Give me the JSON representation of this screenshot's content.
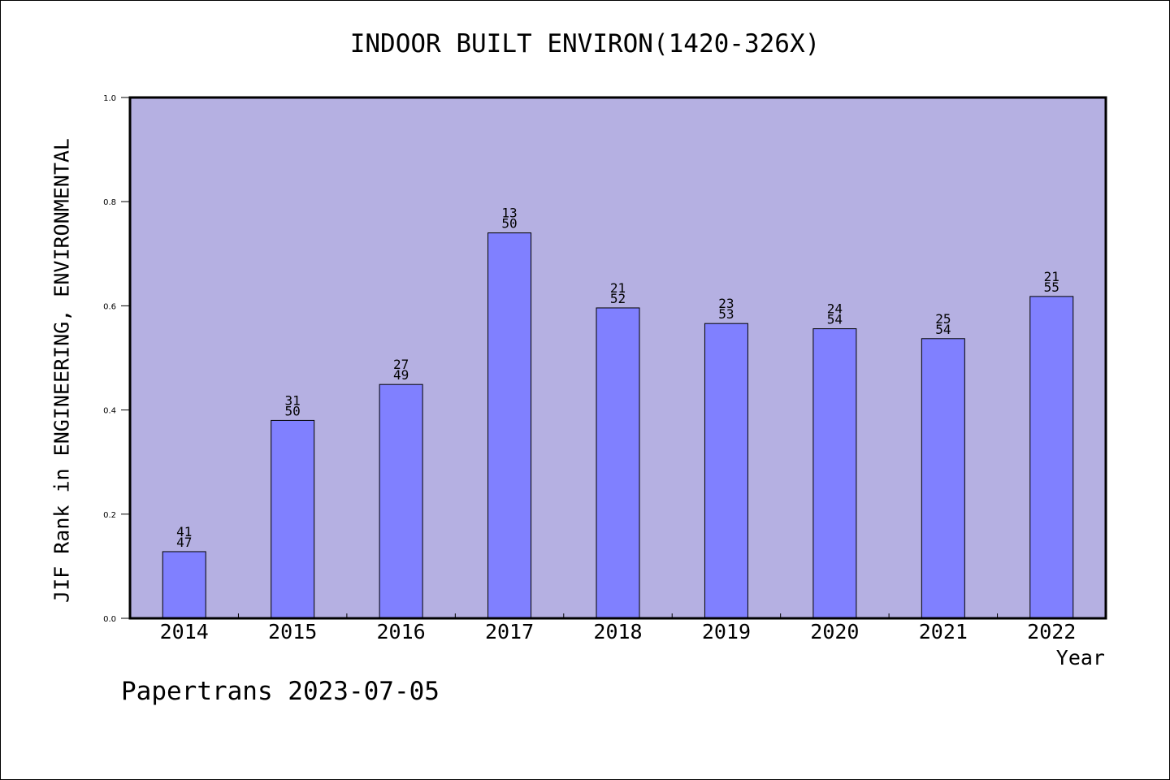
{
  "chart_data": {
    "type": "bar",
    "title": "INDOOR BUILT ENVIRON(1420-326X)",
    "xlabel": "Year",
    "ylabel": "JIF Rank in ENGINEERING, ENVIRONMENTAL",
    "ylim": [
      0,
      1.0
    ],
    "yticks": [
      "0.0",
      "0.2",
      "0.4",
      "0.6",
      "0.8",
      "1.0"
    ],
    "grid": false,
    "categories": [
      "2014",
      "2015",
      "2016",
      "2017",
      "2018",
      "2019",
      "2020",
      "2021",
      "2022"
    ],
    "values": [
      0.128,
      0.38,
      0.449,
      0.74,
      0.596,
      0.566,
      0.556,
      0.537,
      0.618
    ],
    "bar_labels": [
      [
        "41",
        "47"
      ],
      [
        "31",
        "50"
      ],
      [
        "27",
        "49"
      ],
      [
        "13",
        "50"
      ],
      [
        "21",
        "52"
      ],
      [
        "23",
        "53"
      ],
      [
        "24",
        "54"
      ],
      [
        "25",
        "54"
      ],
      [
        "21",
        "55"
      ]
    ],
    "colors": {
      "plot_background": "#b5b0e2",
      "bar_fill": "#8080ff",
      "bar_stroke": "#000000"
    }
  },
  "footer": {
    "text": "Papertrans 2023-07-05"
  }
}
